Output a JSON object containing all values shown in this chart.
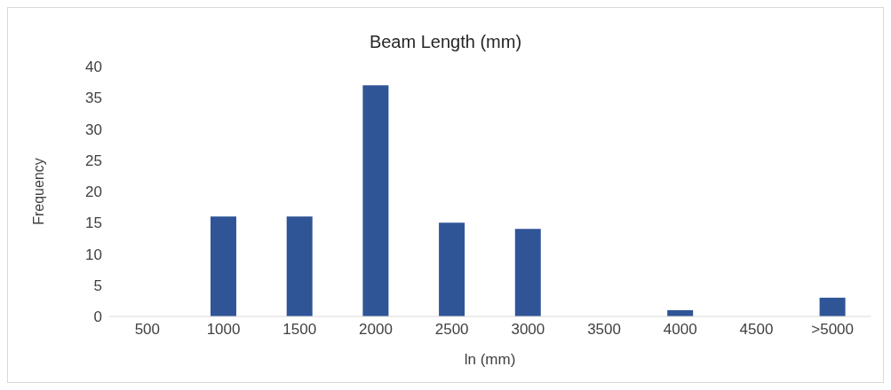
{
  "chart_data": {
    "type": "bar",
    "title": "Beam Length (mm)",
    "xlabel": "ln (mm)",
    "ylabel": "Frequency",
    "categories": [
      "500",
      "1000",
      "1500",
      "2000",
      "2500",
      "3000",
      "3500",
      "4000",
      "4500",
      ">5000"
    ],
    "values": [
      0,
      16,
      16,
      37,
      15,
      14,
      0,
      1,
      0,
      3
    ],
    "color": "#2f5597",
    "ylim": [
      0,
      40
    ],
    "yticks": [
      0,
      5,
      10,
      15,
      20,
      25,
      30,
      35,
      40
    ]
  }
}
